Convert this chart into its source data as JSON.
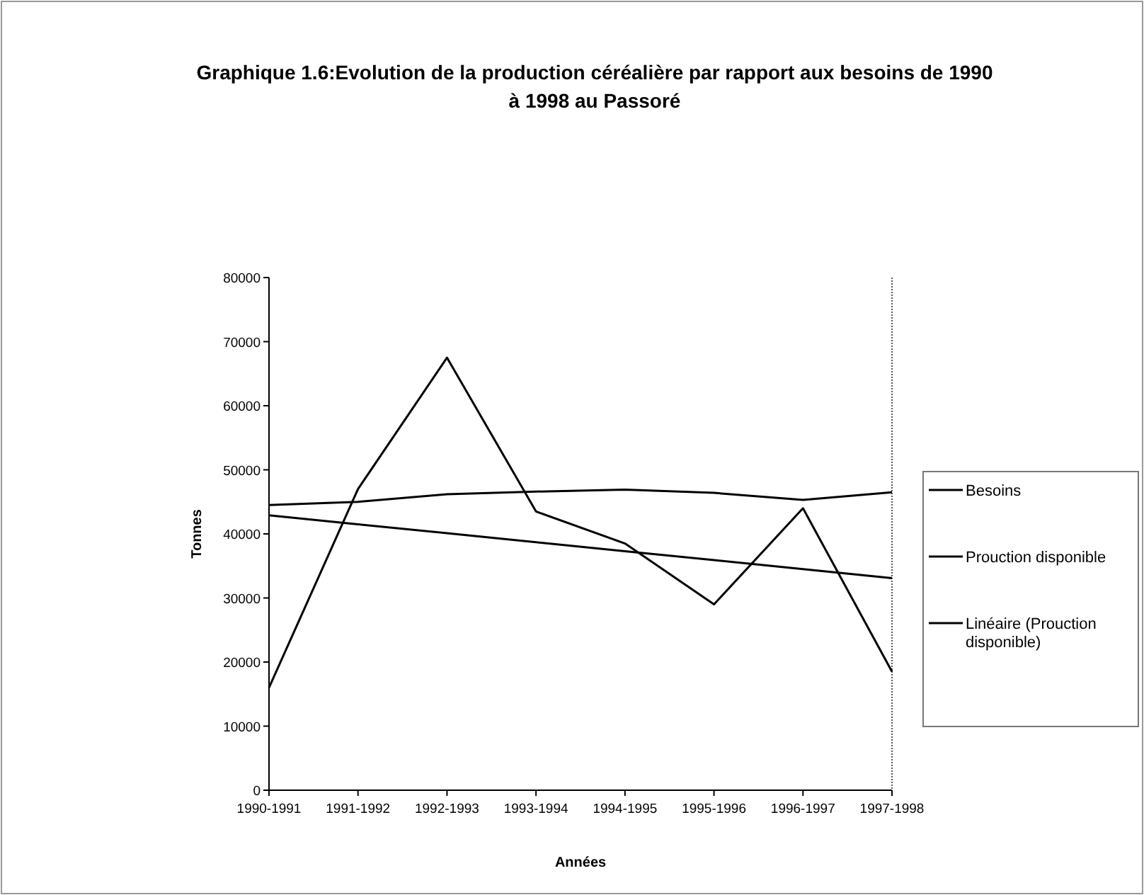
{
  "chart_data": {
    "type": "line",
    "title": "Graphique 1.6:Evolution de la production céréalière par rapport aux besoins de 1990 à 1998 au Passoré",
    "xlabel": "Années",
    "ylabel": "Tonnes",
    "categories": [
      "1990-1991",
      "1991-1992",
      "1992-1993",
      "1993-1994",
      "1994-1995",
      "1995-1996",
      "1996-1997",
      "1997-1998"
    ],
    "series": [
      {
        "name": "Besoins",
        "color": "#000000",
        "values": [
          16000,
          47000,
          67500,
          43500,
          38500,
          29000,
          44000,
          18500
        ]
      },
      {
        "name": "Prouction disponible",
        "color": "#000000",
        "values": [
          44500,
          45000,
          46200,
          46600,
          46900,
          46400,
          45300,
          46500
        ]
      },
      {
        "name": "Linéaire (Prouction disponible)",
        "color": "#000000",
        "values": [
          42900,
          41500,
          40100,
          38700,
          37300,
          35900,
          34500,
          33100
        ]
      }
    ],
    "ylim": [
      0,
      80000
    ],
    "yticks": [
      0,
      10000,
      20000,
      30000,
      40000,
      50000,
      60000,
      70000,
      80000
    ],
    "grid": false,
    "legend": "right",
    "marker": "none",
    "line_style": "solid"
  }
}
